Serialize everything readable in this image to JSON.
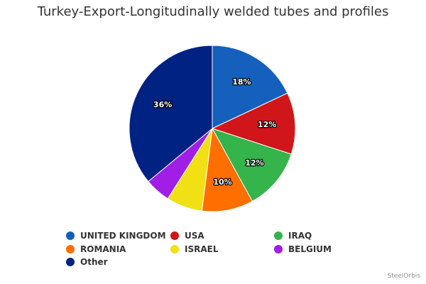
{
  "chart_data": {
    "type": "pie",
    "title": "Turkey-Export-Longitudinally welded tubes and profiles",
    "slices": [
      {
        "name": "UNITED KINGDOM",
        "value": 18,
        "label": "18%",
        "color": "#1560bd"
      },
      {
        "name": "USA",
        "value": 12,
        "label": "12%",
        "color": "#d0161b"
      },
      {
        "name": "IRAQ",
        "value": 12,
        "label": "12%",
        "color": "#34b44a"
      },
      {
        "name": "ROMANIA",
        "value": 10,
        "label": "10%",
        "color": "#fe6e00"
      },
      {
        "name": "ISRAEL",
        "value": 7,
        "label": "",
        "color": "#f0e014"
      },
      {
        "name": "BELGIUM",
        "value": 5,
        "label": "",
        "color": "#a11ee6"
      },
      {
        "name": "Other",
        "value": 36,
        "label": "36%",
        "color": "#002283"
      }
    ],
    "legend_position": "bottom"
  },
  "credit": "SteelOrbis"
}
